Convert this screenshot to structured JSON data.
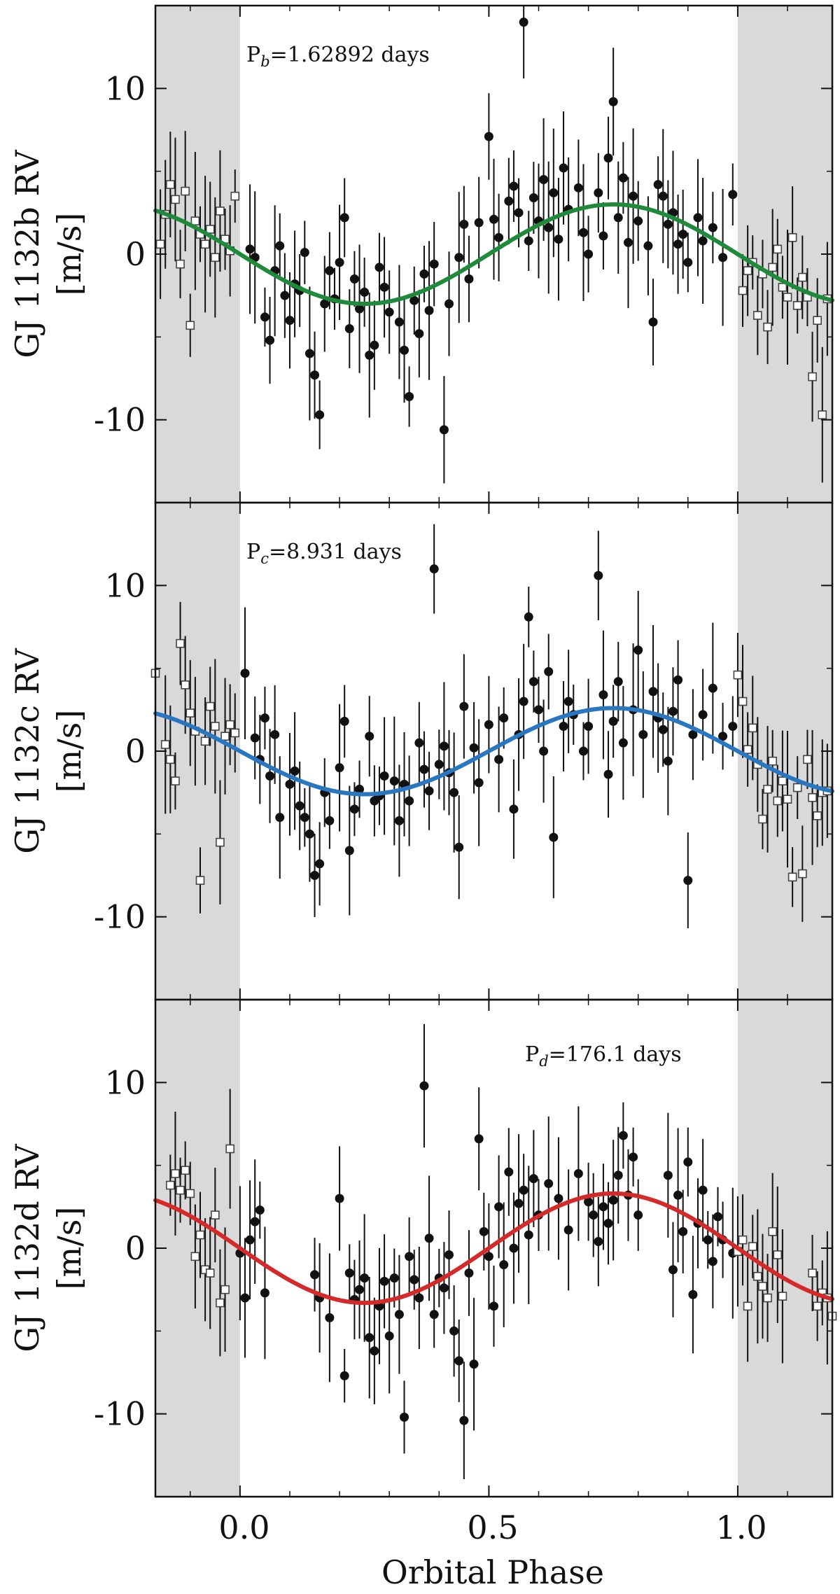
{
  "figure": {
    "xlabel": "Orbital Phase",
    "x_tick_labels": [
      "0.0",
      "0.5",
      "1.0"
    ],
    "y_tick_labels": [
      "10",
      "0",
      "-10"
    ]
  },
  "chart_data": [
    {
      "type": "scatter",
      "ylabel_line1": "GJ 1132b RV",
      "ylabel_line2": "[m/s]",
      "annotation_main": "P",
      "annotation_sub": "b",
      "annotation_rest": "=1.62892 days",
      "xlim": [
        -0.17,
        1.19
      ],
      "ylim": [
        -15,
        15
      ],
      "x_ticks": [
        0.0,
        0.5,
        1.0
      ],
      "y_ticks": [
        10,
        0,
        -10
      ],
      "shaded_x_ranges": [
        [
          -0.17,
          0.0
        ],
        [
          1.0,
          1.19
        ]
      ],
      "grid": false,
      "model": {
        "color": "#1f8a3c",
        "amplitude": 3.0
      },
      "series": [
        {
          "marker": "filled-circle",
          "x": [
            0.02,
            0.03,
            0.05,
            0.06,
            0.07,
            0.08,
            0.09,
            0.1,
            0.11,
            0.12,
            0.13,
            0.14,
            0.15,
            0.16,
            0.17,
            0.18,
            0.19,
            0.2,
            0.21,
            0.22,
            0.23,
            0.24,
            0.25,
            0.26,
            0.27,
            0.28,
            0.29,
            0.3,
            0.32,
            0.33,
            0.34,
            0.35,
            0.36,
            0.37,
            0.38,
            0.39,
            0.41,
            0.42,
            0.44,
            0.45,
            0.46,
            0.48,
            0.5,
            0.51,
            0.52,
            0.54,
            0.55,
            0.56,
            0.57,
            0.58,
            0.59,
            0.6,
            0.61,
            0.62,
            0.63,
            0.64,
            0.65,
            0.66,
            0.68,
            0.69,
            0.7,
            0.72,
            0.73,
            0.74,
            0.75,
            0.76,
            0.77,
            0.78,
            0.79,
            0.8,
            0.82,
            0.83,
            0.84,
            0.85,
            0.86,
            0.87,
            0.88,
            0.89,
            0.9,
            0.92,
            0.93,
            0.95,
            0.97,
            0.99
          ],
          "y": [
            0.3,
            -0.2,
            -3.8,
            -5.2,
            -1.0,
            0.5,
            -2.5,
            -4.0,
            -1.8,
            -2.2,
            0.1,
            -6.0,
            -7.3,
            -9.7,
            -3.0,
            -1.0,
            -2.7,
            -0.5,
            2.2,
            -4.5,
            -1.5,
            -3.3,
            -2.3,
            -6.1,
            -5.5,
            -0.8,
            -2.0,
            -3.5,
            -4.1,
            -5.8,
            -8.6,
            -2.8,
            -4.8,
            -1.2,
            -3.4,
            -0.6,
            -10.6,
            -3.0,
            -0.2,
            1.8,
            -1.5,
            1.9,
            7.1,
            2.1,
            1.0,
            3.2,
            4.1,
            2.5,
            14.0,
            0.8,
            3.4,
            2.0,
            4.5,
            1.6,
            3.7,
            0.9,
            5.2,
            2.7,
            4.0,
            1.3,
            0.0,
            3.7,
            1.1,
            5.8,
            9.2,
            2.2,
            4.6,
            0.7,
            3.5,
            2.0,
            0.5,
            -4.1,
            4.2,
            3.5,
            1.8,
            2.5,
            0.6,
            1.2,
            -0.5,
            2.2,
            0.8,
            1.6,
            -0.2,
            3.6
          ]
        },
        {
          "marker": "open-square",
          "x": [
            -0.16,
            -0.15,
            -0.14,
            -0.13,
            -0.12,
            -0.11,
            -0.1,
            -0.09,
            -0.08,
            -0.07,
            -0.06,
            -0.05,
            -0.04,
            -0.03,
            -0.02,
            -0.01,
            1.01,
            1.02,
            1.03,
            1.04,
            1.05,
            1.06,
            1.07,
            1.08,
            1.09,
            1.1,
            1.11,
            1.12,
            1.13,
            1.14,
            1.15,
            1.16,
            1.17,
            1.18
          ],
          "y": [
            0.6,
            2.4,
            4.2,
            3.3,
            -0.6,
            3.8,
            -4.3,
            2.0,
            1.2,
            0.6,
            1.5,
            -0.2,
            2.6,
            0.9,
            0.2,
            3.5,
            -2.2,
            -1.0,
            -0.5,
            -3.7,
            -1.2,
            -4.4,
            -0.8,
            0.3,
            -2.0,
            -2.6,
            1.0,
            -3.1,
            -1.4,
            -2.6,
            -7.4,
            -4.0,
            -9.7,
            -2.7
          ]
        }
      ]
    },
    {
      "type": "scatter",
      "ylabel_line1": "GJ 1132c RV",
      "ylabel_line2": "[m/s]",
      "annotation_main": "P",
      "annotation_sub": "c",
      "annotation_rest": "=8.931 days",
      "xlim": [
        -0.17,
        1.19
      ],
      "ylim": [
        -15,
        15
      ],
      "x_ticks": [
        0.0,
        0.5,
        1.0
      ],
      "y_ticks": [
        10,
        0,
        -10
      ],
      "shaded_x_ranges": [
        [
          -0.17,
          0.0
        ],
        [
          1.0,
          1.19
        ]
      ],
      "grid": false,
      "model": {
        "color": "#2977c0",
        "amplitude": 2.6
      },
      "series": [
        {
          "marker": "filled-circle",
          "x": [
            0.01,
            0.03,
            0.04,
            0.05,
            0.06,
            0.07,
            0.08,
            0.1,
            0.11,
            0.12,
            0.13,
            0.14,
            0.15,
            0.16,
            0.17,
            0.18,
            0.2,
            0.21,
            0.22,
            0.23,
            0.24,
            0.26,
            0.27,
            0.28,
            0.29,
            0.31,
            0.32,
            0.33,
            0.34,
            0.36,
            0.37,
            0.38,
            0.39,
            0.4,
            0.41,
            0.42,
            0.43,
            0.44,
            0.45,
            0.47,
            0.48,
            0.5,
            0.52,
            0.53,
            0.55,
            0.56,
            0.57,
            0.58,
            0.59,
            0.6,
            0.61,
            0.62,
            0.63,
            0.65,
            0.66,
            0.67,
            0.69,
            0.7,
            0.72,
            0.73,
            0.74,
            0.75,
            0.76,
            0.77,
            0.79,
            0.8,
            0.81,
            0.83,
            0.84,
            0.85,
            0.86,
            0.87,
            0.88,
            0.9,
            0.91,
            0.93,
            0.95,
            0.97,
            0.99
          ],
          "y": [
            4.7,
            0.8,
            -0.5,
            2.0,
            -1.5,
            1.0,
            -4.0,
            -2.0,
            -1.2,
            -3.3,
            -4.0,
            -5.0,
            -7.5,
            -6.8,
            -2.5,
            -4.2,
            -1.0,
            1.8,
            -6.0,
            -3.5,
            -2.3,
            0.9,
            -3.0,
            -2.7,
            -1.5,
            -1.8,
            -4.2,
            -2.0,
            -3.0,
            0.5,
            -1.1,
            -2.4,
            11.0,
            -0.8,
            0.3,
            -1.3,
            -2.5,
            -5.8,
            2.7,
            0.2,
            -1.9,
            1.6,
            -0.5,
            2.0,
            -3.5,
            1.0,
            3.0,
            8.1,
            4.2,
            2.5,
            0.0,
            4.8,
            -5.2,
            1.5,
            3.0,
            2.2,
            0.0,
            1.5,
            10.6,
            3.4,
            -1.4,
            1.8,
            4.2,
            0.5,
            2.5,
            6.1,
            1.0,
            3.6,
            2.0,
            1.3,
            -0.6,
            2.4,
            4.3,
            -7.8,
            1.0,
            2.2,
            3.8,
            0.9,
            1.5
          ]
        },
        {
          "marker": "open-square",
          "x": [
            -0.17,
            -0.15,
            -0.14,
            -0.13,
            -0.12,
            -0.11,
            -0.1,
            -0.09,
            -0.08,
            -0.07,
            -0.06,
            -0.05,
            -0.04,
            -0.03,
            -0.02,
            -0.01,
            1.0,
            1.01,
            1.02,
            1.03,
            1.04,
            1.05,
            1.06,
            1.07,
            1.08,
            1.09,
            1.1,
            1.11,
            1.12,
            1.13,
            1.14,
            1.15,
            1.16,
            1.17,
            1.18
          ],
          "y": [
            4.7,
            0.4,
            -0.5,
            -1.8,
            6.5,
            4.0,
            2.3,
            1.2,
            -7.8,
            0.6,
            2.7,
            1.5,
            -5.5,
            0.9,
            1.6,
            1.1,
            4.6,
            3.0,
            0.1,
            1.4,
            -0.8,
            -4.1,
            -2.3,
            -0.6,
            -3.0,
            -1.8,
            -2.9,
            -7.6,
            -2.2,
            -7.4,
            -0.5,
            -2.8,
            -3.9,
            -2.5,
            -2.4
          ]
        }
      ]
    },
    {
      "type": "scatter",
      "ylabel_line1": "GJ 1132d RV",
      "ylabel_line2": "[m/s]",
      "annotation_main": "P",
      "annotation_sub": "d",
      "annotation_rest": "=176.1 days",
      "xlim": [
        -0.17,
        1.19
      ],
      "ylim": [
        -15,
        15
      ],
      "x_ticks": [
        0.0,
        0.5,
        1.0
      ],
      "y_ticks": [
        10,
        0,
        -10
      ],
      "shaded_x_ranges": [
        [
          -0.17,
          0.0
        ],
        [
          1.0,
          1.19
        ]
      ],
      "grid": false,
      "model": {
        "color": "#d42a2a",
        "amplitude": 3.3
      },
      "series": [
        {
          "marker": "filled-circle",
          "x": [
            0.0,
            0.01,
            0.02,
            0.03,
            0.04,
            0.05,
            0.15,
            0.16,
            0.18,
            0.2,
            0.21,
            0.22,
            0.23,
            0.24,
            0.25,
            0.26,
            0.27,
            0.28,
            0.29,
            0.3,
            0.31,
            0.32,
            0.33,
            0.34,
            0.35,
            0.36,
            0.37,
            0.38,
            0.39,
            0.4,
            0.41,
            0.42,
            0.43,
            0.44,
            0.45,
            0.46,
            0.47,
            0.48,
            0.49,
            0.5,
            0.51,
            0.52,
            0.53,
            0.54,
            0.55,
            0.56,
            0.57,
            0.58,
            0.59,
            0.6,
            0.62,
            0.64,
            0.66,
            0.68,
            0.7,
            0.71,
            0.72,
            0.73,
            0.74,
            0.75,
            0.76,
            0.77,
            0.78,
            0.79,
            0.8,
            0.86,
            0.87,
            0.88,
            0.89,
            0.9,
            0.91,
            0.92,
            0.93,
            0.94,
            0.95,
            0.96,
            0.97,
            0.99
          ],
          "y": [
            -0.3,
            -3.0,
            0.5,
            1.6,
            2.3,
            -2.7,
            -1.6,
            -3.0,
            -4.2,
            3.0,
            -7.7,
            -1.5,
            -3.1,
            -2.5,
            -1.8,
            -5.4,
            -6.2,
            -3.5,
            -2.0,
            -5.3,
            -1.8,
            -4.0,
            -10.2,
            -0.5,
            -1.9,
            -3.0,
            9.8,
            0.6,
            -4.0,
            -1.8,
            -2.4,
            -0.4,
            -5.0,
            -6.8,
            -10.4,
            -1.5,
            -7.0,
            6.6,
            1.0,
            -0.5,
            -3.5,
            2.5,
            -1.0,
            4.6,
            0.0,
            2.7,
            3.5,
            0.8,
            4.2,
            2.0,
            3.9,
            3.0,
            1.1,
            4.5,
            2.8,
            2.0,
            0.4,
            2.5,
            1.5,
            2.9,
            4.4,
            6.8,
            3.2,
            5.5,
            2.0,
            4.4,
            -1.3,
            3.2,
            1.0,
            5.2,
            -2.8,
            1.5,
            3.5,
            0.5,
            -0.8,
            1.9,
            0.5,
            -0.3
          ]
        },
        {
          "marker": "open-square",
          "x": [
            -0.14,
            -0.13,
            -0.12,
            -0.11,
            -0.1,
            -0.09,
            -0.08,
            -0.07,
            -0.06,
            -0.05,
            -0.04,
            -0.03,
            -0.02,
            1.0,
            1.01,
            1.02,
            1.03,
            1.04,
            1.05,
            1.06,
            1.07,
            1.08,
            1.09,
            1.15,
            1.16,
            1.17,
            1.18,
            1.19
          ],
          "y": [
            3.8,
            4.5,
            3.5,
            4.7,
            3.3,
            -0.5,
            0.8,
            -1.3,
            -1.5,
            2.0,
            -3.3,
            -2.5,
            6.0,
            -0.2,
            0.5,
            -3.5,
            0.1,
            -1.7,
            -2.3,
            -3.0,
            1.0,
            -0.4,
            -2.9,
            -1.5,
            -3.5,
            -2.7,
            -3.0,
            -4.1
          ]
        }
      ]
    }
  ]
}
